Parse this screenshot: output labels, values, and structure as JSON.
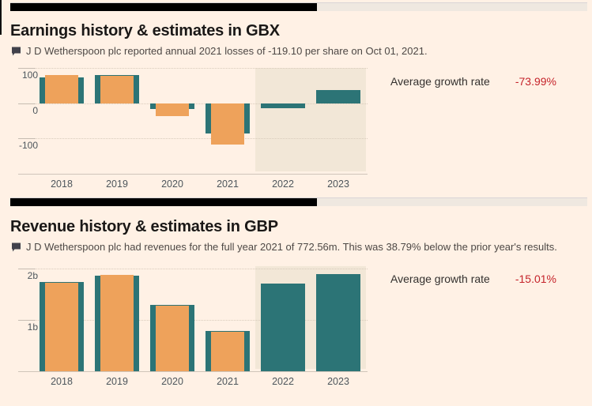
{
  "colors": {
    "bg": "#FFF1E5",
    "actual": "#EEA25B",
    "estimate": "#2C7476",
    "estimate_region": "#F2E7D7",
    "negative": "#C5232A"
  },
  "icons": {
    "subtitle_marker": "comment-icon"
  },
  "earnings": {
    "title": "Earnings history & estimates in GBX",
    "subtitle": "J D Wetherspoon plc reported annual 2021 losses of -119.10 per share on Oct 01, 2021.",
    "stat_label": "Average growth rate",
    "stat_value": "-73.99%"
  },
  "revenue": {
    "title": "Revenue history & estimates in GBP",
    "subtitle": "J D Wetherspoon plc had revenues for the full year 2021 of 772.56m. This was 38.79% below the prior year's results.",
    "stat_label": "Average growth rate",
    "stat_value": "-15.01%"
  },
  "chart_data": [
    {
      "type": "bar",
      "title": "Earnings history & estimates in GBX",
      "unit": "GBX per share",
      "categories": [
        "2018",
        "2019",
        "2020",
        "2021",
        "2022",
        "2023"
      ],
      "series": [
        {
          "name": "actual",
          "values": [
            81,
            78,
            -37,
            -119,
            null,
            null
          ]
        },
        {
          "name": "estimate",
          "values": [
            73,
            80,
            -18,
            -88,
            -14,
            37
          ]
        }
      ],
      "ylim": [
        -203,
        101
      ],
      "gridlines": [
        {
          "value": 100,
          "label": "100"
        },
        {
          "value": 0,
          "label": "0"
        },
        {
          "value": -100,
          "label": "-100"
        }
      ],
      "estimate_region": {
        "from_category_index": 4
      },
      "legend": "none",
      "grid": "dotted horizontal"
    },
    {
      "type": "bar",
      "title": "Revenue history & estimates in GBP",
      "unit": "GBP billions",
      "categories": [
        "2018",
        "2019",
        "2020",
        "2021",
        "2022",
        "2023"
      ],
      "series": [
        {
          "name": "actual",
          "values": [
            1.72,
            1.88,
            1.28,
            0.77,
            null,
            null
          ]
        },
        {
          "name": "estimate",
          "values": [
            1.74,
            1.86,
            1.3,
            0.79,
            1.71,
            1.9
          ]
        }
      ],
      "ylim": [
        0,
        2.05
      ],
      "gridlines": [
        {
          "value": 2,
          "label": "2b"
        },
        {
          "value": 1,
          "label": "1b"
        }
      ],
      "estimate_region": {
        "from_category_index": 4
      },
      "legend": "none",
      "grid": "dotted horizontal"
    }
  ]
}
